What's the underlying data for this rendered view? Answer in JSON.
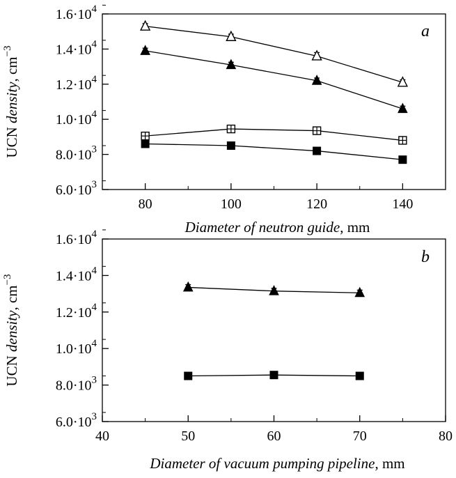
{
  "chart_data": [
    {
      "type": "scatter",
      "panel_label": "a",
      "xlabel_italic": "Diameter of neutron guide",
      "xlabel_unit": ", mm",
      "ylabel_prefix": "UCN ",
      "ylabel_italic": "density",
      "ylabel_unit": ", cm",
      "ylabel_exp": "−3",
      "xlim": [
        70,
        150
      ],
      "ylim": [
        6000,
        16000
      ],
      "x_ticks": [
        80,
        100,
        120,
        140
      ],
      "y_ticks": [
        {
          "value": 6000,
          "mant": "6.0·10",
          "exp": "3"
        },
        {
          "value": 8000,
          "mant": "8.0·10",
          "exp": "3"
        },
        {
          "value": 10000,
          "mant": "1.0·10",
          "exp": "4"
        },
        {
          "value": 12000,
          "mant": "1.2·10",
          "exp": "4"
        },
        {
          "value": 14000,
          "mant": "1.4·10",
          "exp": "4"
        },
        {
          "value": 16000,
          "mant": "1.6·10",
          "exp": "4"
        }
      ],
      "grid": false,
      "series": [
        {
          "marker": "triangle-open",
          "x": [
            80,
            100,
            120,
            140
          ],
          "y": [
            15300,
            14700,
            13600,
            12100
          ],
          "err": [
            150,
            150,
            200,
            150
          ]
        },
        {
          "marker": "triangle-filled",
          "x": [
            80,
            100,
            120,
            140
          ],
          "y": [
            13900,
            13100,
            12200,
            10600
          ],
          "err": [
            150,
            150,
            150,
            150
          ]
        },
        {
          "marker": "square-cross",
          "x": [
            80,
            100,
            120,
            140
          ],
          "y": [
            9050,
            9450,
            9350,
            8800
          ],
          "err": [
            100,
            100,
            100,
            100
          ]
        },
        {
          "marker": "square-filled",
          "x": [
            80,
            100,
            120,
            140
          ],
          "y": [
            8600,
            8500,
            8200,
            7700
          ],
          "err": [
            0,
            0,
            0,
            0
          ]
        }
      ]
    },
    {
      "type": "scatter",
      "panel_label": "b",
      "xlabel_italic": "Diameter of vacuum pumping pipeline",
      "xlabel_unit": ", mm",
      "ylabel_prefix": "UCN ",
      "ylabel_italic": "density",
      "ylabel_unit": ", cm",
      "ylabel_exp": "−3",
      "xlim": [
        40,
        80
      ],
      "ylim": [
        6000,
        16000
      ],
      "x_ticks": [
        40,
        50,
        60,
        70,
        80
      ],
      "y_ticks": [
        {
          "value": 6000,
          "mant": "6.0·10",
          "exp": "3"
        },
        {
          "value": 8000,
          "mant": "8.0·10",
          "exp": "3"
        },
        {
          "value": 10000,
          "mant": "1.0·10",
          "exp": "4"
        },
        {
          "value": 12000,
          "mant": "1.2·10",
          "exp": "4"
        },
        {
          "value": 14000,
          "mant": "1.4·10",
          "exp": "4"
        },
        {
          "value": 16000,
          "mant": "1.6·10",
          "exp": "4"
        }
      ],
      "grid": false,
      "series": [
        {
          "marker": "triangle-filled",
          "x": [
            50,
            60,
            70
          ],
          "y": [
            13350,
            13150,
            13050
          ],
          "err": [
            150,
            150,
            150
          ]
        },
        {
          "marker": "square-filled",
          "x": [
            50,
            60,
            70
          ],
          "y": [
            8500,
            8550,
            8500
          ],
          "err": [
            0,
            0,
            0
          ]
        }
      ]
    }
  ]
}
